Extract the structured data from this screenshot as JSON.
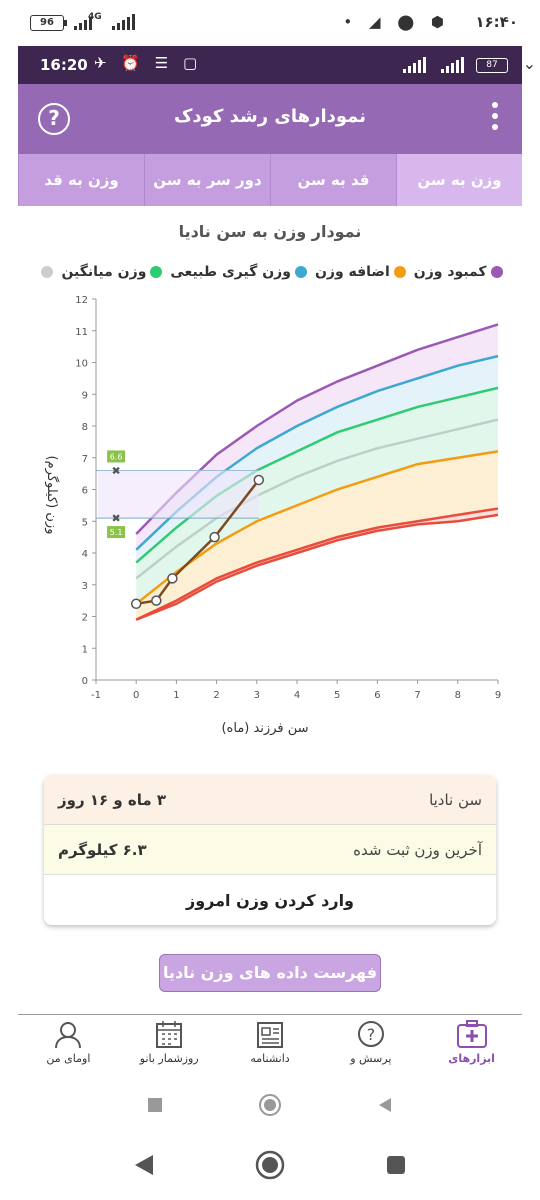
{
  "outer_status": {
    "battery": "96",
    "network": "4G",
    "time": "۱۶:۴۰",
    "icons": "• ◢ ⬤ ⬢"
  },
  "inner_status": {
    "time": "16:20",
    "icons": "✈ ⏰ ☰ ▢",
    "battery": "87",
    "network": "4G"
  },
  "appbar": {
    "title": "نمودارهای رشد کودک",
    "help_icon": "question-circle-icon",
    "menu_icon": "more-vert-icon"
  },
  "tabs": [
    {
      "label": "وزن به سن",
      "active": true
    },
    {
      "label": "قد به سن",
      "active": false
    },
    {
      "label": "دور سر به سن",
      "active": false
    },
    {
      "label": "وزن به قد",
      "active": false
    }
  ],
  "chart_data": {
    "type": "line",
    "title": "نمودار وزن به سن نادیا",
    "xlabel": "سن فرزند (ماه)",
    "ylabel": "وزن (کیلوگرم)",
    "xlim": [
      -1,
      9
    ],
    "ylim": [
      0,
      12
    ],
    "x_ticks": [
      -1,
      0,
      1,
      2,
      3,
      4,
      5,
      6,
      7,
      8,
      9
    ],
    "y_ticks": [
      0,
      1,
      2,
      3,
      4,
      5,
      6,
      7,
      8,
      9,
      10,
      11,
      12
    ],
    "legend": [
      {
        "name": "کمبود وزن",
        "color": "#9b59b6"
      },
      {
        "name": "اضافه وزن",
        "color": "#f39c12"
      },
      {
        "name": "وزن گیری طبیعی",
        "color": "#3fa8d0"
      },
      {
        "name": "وزن میانگین",
        "color": "#2ecc71"
      },
      {
        "name": "",
        "color": "#cccccc"
      }
    ],
    "x": [
      0,
      1,
      2,
      3,
      4,
      5,
      6,
      7,
      8,
      9
    ],
    "curves": [
      {
        "key": "p97",
        "color": "#9b59b6",
        "values": [
          4.6,
          5.9,
          7.1,
          8.0,
          8.8,
          9.4,
          9.9,
          10.4,
          10.8,
          11.2
        ]
      },
      {
        "key": "p85",
        "color": "#3fa8d0",
        "values": [
          4.1,
          5.3,
          6.4,
          7.3,
          8.0,
          8.6,
          9.1,
          9.5,
          9.9,
          10.2
        ]
      },
      {
        "key": "p50",
        "color": "#2ecc71",
        "values": [
          3.7,
          4.8,
          5.8,
          6.6,
          7.2,
          7.8,
          8.2,
          8.6,
          8.9,
          9.2
        ]
      },
      {
        "key": "median",
        "color": "#bfcfc7",
        "values": [
          3.2,
          4.2,
          5.1,
          5.8,
          6.4,
          6.9,
          7.3,
          7.6,
          7.9,
          8.2
        ]
      },
      {
        "key": "p15",
        "color": "#f39c12",
        "values": [
          2.4,
          3.4,
          4.3,
          5.0,
          5.5,
          6.0,
          6.4,
          6.8,
          7.0,
          7.2
        ]
      },
      {
        "key": "p3",
        "color": "#e74c3c",
        "values": [
          1.9,
          2.5,
          3.2,
          3.7,
          4.1,
          4.5,
          4.8,
          5.0,
          5.2,
          5.4
        ]
      },
      {
        "key": "p1",
        "color": "#e74c3c",
        "values": [
          1.9,
          2.4,
          3.1,
          3.6,
          4.0,
          4.4,
          4.7,
          4.9,
          5.0,
          5.2
        ]
      }
    ],
    "child_series": {
      "x": [
        0,
        0.5,
        0.9,
        1.95,
        3.05
      ],
      "values": [
        2.4,
        2.5,
        3.2,
        4.5,
        6.3
      ]
    },
    "ref_marks": [
      {
        "label": "6.6",
        "value": 6.6
      },
      {
        "label": "5.1",
        "value": 5.1
      }
    ]
  },
  "card": {
    "age_label": "سن نادیا",
    "age_value": "۳ ماه و ۱۶ روز",
    "weight_label": "آخرین وزن ثبت شده",
    "weight_value": "۶.۳ کیلوگرم",
    "enter_weight": "وارد کردن وزن امروز"
  },
  "list_button": "فهرست داده های وزن نادیا",
  "bottom_nav": [
    {
      "label": "ابزارهای",
      "icon": "medical-kit-icon",
      "active": true
    },
    {
      "label": "پرسش و",
      "icon": "question-bubble-icon",
      "active": false
    },
    {
      "label": "دانشنامه",
      "icon": "newspaper-icon",
      "active": false
    },
    {
      "label": "روزشمار بانو",
      "icon": "calendar-icon",
      "active": false
    },
    {
      "label": "اومای من",
      "icon": "profile-icon",
      "active": false
    }
  ]
}
